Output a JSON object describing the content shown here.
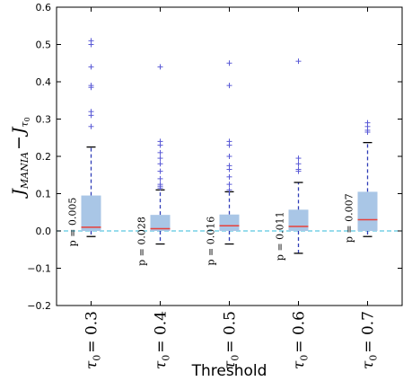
{
  "chart_data": {
    "type": "box",
    "xlabel": "Threshold",
    "ylabel": {
      "base": "J",
      "sub1": "MANIA",
      "minus": "−",
      "base2": "J",
      "sub2": "τ",
      "sub2sub": "0"
    },
    "ylim": [
      -0.2,
      0.6
    ],
    "yticks": [
      "−0.2",
      "−0.1",
      "0.0",
      "0.1",
      "0.2",
      "0.3",
      "0.4",
      "0.5",
      "0.6"
    ],
    "ytick_values": [
      -0.2,
      -0.1,
      0.0,
      0.1,
      0.2,
      0.3,
      0.4,
      0.5,
      0.6
    ],
    "categories": [
      "τ0 = 0.3",
      "τ0 = 0.4",
      "τ0 = 0.5",
      "τ0 = 0.6",
      "τ0 = 0.7"
    ],
    "category_parts": [
      {
        "tau": "τ",
        "sub": "0",
        "eq": "= 0.3"
      },
      {
        "tau": "τ",
        "sub": "0",
        "eq": "= 0.4"
      },
      {
        "tau": "τ",
        "sub": "0",
        "eq": "= 0.5"
      },
      {
        "tau": "τ",
        "sub": "0",
        "eq": "= 0.6"
      },
      {
        "tau": "τ",
        "sub": "0",
        "eq": "= 0.7"
      }
    ],
    "p_values": [
      "p = 0.005",
      "p = 0.028",
      "p = 0.016",
      "p = 0.011",
      "p = 0.007"
    ],
    "boxes": [
      {
        "whislo": -0.015,
        "q1": 0.0,
        "med": 0.01,
        "q3": 0.095,
        "whishi": 0.225,
        "fliers": [
          0.51,
          0.5,
          0.44,
          0.39,
          0.385,
          0.32,
          0.31,
          0.28
        ]
      },
      {
        "whislo": -0.035,
        "q1": 0.0,
        "med": 0.006,
        "q3": 0.043,
        "whishi": 0.11,
        "fliers": [
          0.44,
          0.24,
          0.23,
          0.21,
          0.195,
          0.18,
          0.16,
          0.14,
          0.125,
          0.12,
          0.115
        ]
      },
      {
        "whislo": -0.035,
        "q1": 0.0,
        "med": 0.014,
        "q3": 0.044,
        "whishi": 0.105,
        "fliers": [
          0.45,
          0.39,
          0.24,
          0.23,
          0.2,
          0.175,
          0.165,
          0.145,
          0.125,
          0.11
        ]
      },
      {
        "whislo": -0.06,
        "q1": 0.0,
        "med": 0.012,
        "q3": 0.057,
        "whishi": 0.13,
        "fliers": [
          0.455,
          0.195,
          0.18,
          0.165,
          0.16
        ]
      },
      {
        "whislo": -0.015,
        "q1": 0.0,
        "med": 0.03,
        "q3": 0.105,
        "whishi": 0.237,
        "fliers": [
          0.29,
          0.28,
          0.27,
          0.265
        ]
      }
    ],
    "reference_line": 0.0,
    "colors": {
      "box_fill": "#a9c6e6",
      "median": "#e8403a",
      "whisker": "#2f3db8",
      "cap": "#000000",
      "flier": "#5a5ad6",
      "refline": "#5bc8e0"
    },
    "grid": false
  }
}
